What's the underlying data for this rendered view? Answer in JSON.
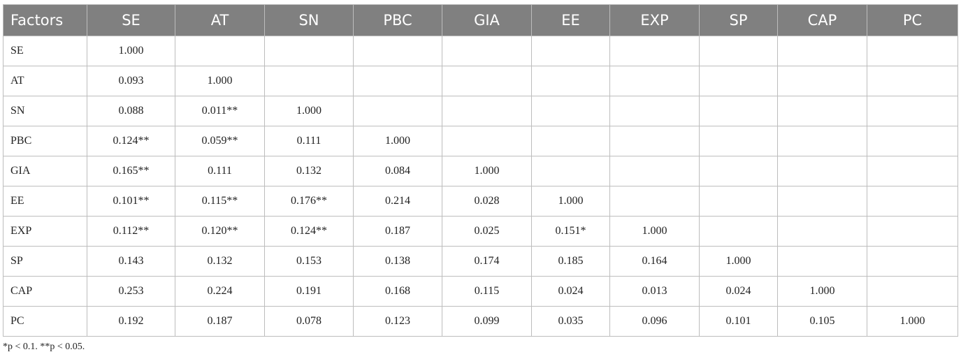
{
  "table": {
    "columns": [
      "Factors",
      "SE",
      "AT",
      "SN",
      "PBC",
      "GIA",
      "EE",
      "EXP",
      "SP",
      "CAP",
      "PC"
    ],
    "rows": [
      [
        "SE",
        "1.000"
      ],
      [
        "AT",
        "0.093",
        "1.000"
      ],
      [
        "SN",
        "0.088",
        "0.011**",
        "1.000"
      ],
      [
        "PBC",
        "0.124**",
        "0.059**",
        "0.111",
        "1.000"
      ],
      [
        "GIA",
        "0.165**",
        "0.111",
        "0.132",
        "0.084",
        "1.000"
      ],
      [
        "EE",
        "0.101**",
        "0.115**",
        "0.176**",
        "0.214",
        "0.028",
        "1.000"
      ],
      [
        "EXP",
        "0.112**",
        "0.120**",
        "0.124**",
        "0.187",
        "0.025",
        "0.151*",
        "1.000"
      ],
      [
        "SP",
        "0.143",
        "0.132",
        "0.153",
        "0.138",
        "0.174",
        "0.185",
        "0.164",
        "1.000"
      ],
      [
        "CAP",
        "0.253",
        "0.224",
        "0.191",
        "0.168",
        "0.115",
        "0.024",
        "0.013",
        "0.024",
        "1.000"
      ],
      [
        "PC",
        "0.192",
        "0.187",
        "0.078",
        "0.123",
        "0.099",
        "0.035",
        "0.096",
        "0.101",
        "0.105",
        "1.000"
      ]
    ]
  },
  "footnote": "*p < 0.1. **p < 0.05."
}
